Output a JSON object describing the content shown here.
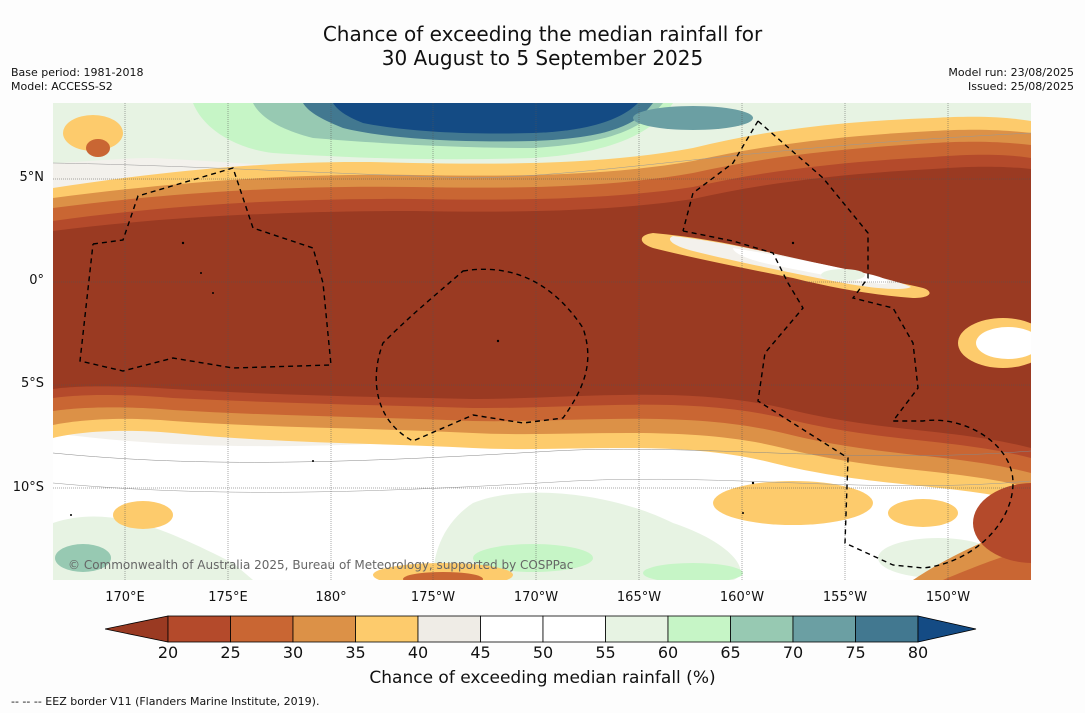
{
  "title_line1": "Chance of exceeding the median rainfall for",
  "title_line2": "30 August to 5 September 2025",
  "base_period": "Base period: 1981-2018",
  "model": "Model: ACCESS-S2",
  "model_run": "Model run: 23/08/2025",
  "issued": "Issued: 25/08/2025",
  "copyright": "© Commonwealth of Australia 2025, Bureau of Meteorology, supported by COSPPac",
  "footnote": "--  --  -- EEZ border V11 (Flanders Marine Institute, 2019).",
  "lat_labels": [
    "5°N",
    "0°",
    "5°S",
    "10°S"
  ],
  "lon_labels": [
    "170°E",
    "175°E",
    "180°",
    "175°W",
    "170°W",
    "165°W",
    "160°W",
    "155°W",
    "150°W"
  ],
  "colorbar": {
    "label": "Chance of exceeding median rainfall (%)",
    "ticks": [
      "20",
      "25",
      "30",
      "35",
      "40",
      "45",
      "50",
      "55",
      "60",
      "65",
      "70",
      "75",
      "80"
    ],
    "colors": [
      "#9a3a22",
      "#b44a2b",
      "#c96633",
      "#dc9147",
      "#fdcb6c",
      "#efece6",
      "#ffffff",
      "#ffffff",
      "#e7f3e3",
      "#c6f5c6",
      "#97c9b2",
      "#6b9fa3",
      "#427890",
      "#144b84"
    ]
  }
}
